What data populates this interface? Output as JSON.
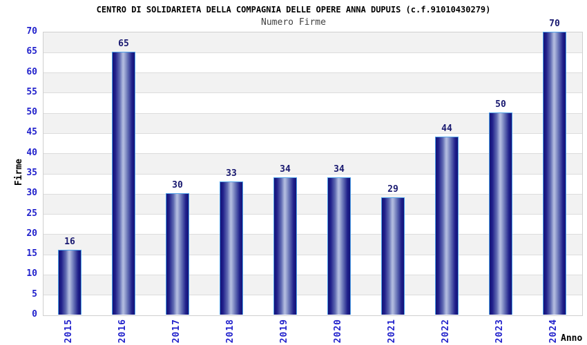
{
  "chart_data": {
    "type": "bar",
    "title": "CENTRO DI SOLIDARIETA DELLA COMPAGNIA DELLE OPERE ANNA DUPUIS (c.f.91010430279)",
    "subtitle": "Numero Firme",
    "xlabel": "Anno",
    "ylabel": "Firme",
    "categories": [
      "2015",
      "2016",
      "2017",
      "2018",
      "2019",
      "2020",
      "2021",
      "2022",
      "2023",
      "2024"
    ],
    "values": [
      16,
      65,
      30,
      33,
      34,
      34,
      29,
      44,
      50,
      70
    ],
    "ylim": [
      0,
      70
    ],
    "ytick_step": 5,
    "yticks": [
      0,
      5,
      10,
      15,
      20,
      25,
      30,
      35,
      40,
      45,
      50,
      55,
      60,
      65,
      70
    ],
    "grid": true,
    "legend": false,
    "layout_hints": {
      "bands_alternating": true,
      "value_labels_above_bars": true,
      "xtick_rotation_deg": 90
    },
    "colors": {
      "bar_dark": "#131378",
      "bar_highlight": "#b3bce0",
      "bar_border": "#4da0e8",
      "ytick_label": "#2222cc",
      "xtick_label": "#2222cc",
      "value_label": "#191970",
      "title": "#000000",
      "subtitle": "#404040",
      "band_gray": "#f2f2f2",
      "band_white": "#ffffff",
      "gridline": "#dcdcdc",
      "plot_border": "#cfcfcf",
      "background": "#ffffff"
    }
  }
}
